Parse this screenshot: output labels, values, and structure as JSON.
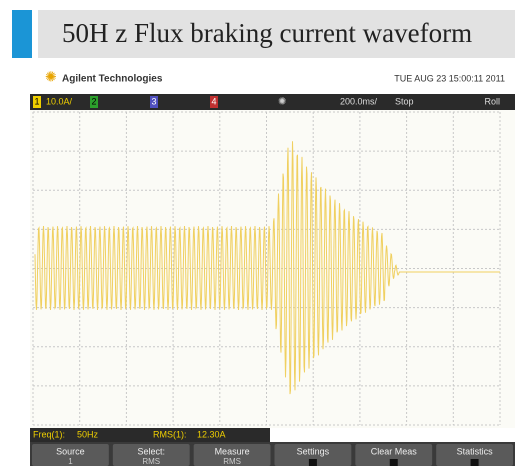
{
  "header": {
    "title": "50H z Flux braking current waveform"
  },
  "brand": "Agilent Technologies",
  "timestamp": "TUE AUG 23 15:00:11 2011",
  "status_bar": {
    "channel1": "1",
    "ch1_scale": "10.0A/",
    "channel2": "2",
    "channel3": "3",
    "channel4": "4",
    "time_scale": "200.0ms/",
    "run_state": "Stop",
    "mode": "Roll"
  },
  "measurements": [
    {
      "label": "Freq(1):",
      "value": "50Hz"
    },
    {
      "label": "RMS(1):",
      "value": "12.30A"
    }
  ],
  "softkeys": [
    {
      "label": "Source",
      "sub": "1"
    },
    {
      "label": "Select:",
      "sub": "RMS"
    },
    {
      "label": "Measure",
      "sub": "RMS"
    },
    {
      "label": "Settings",
      "sub": null
    },
    {
      "label": "Clear Meas",
      "sub": null
    },
    {
      "label": "Statistics",
      "sub": null
    }
  ]
}
